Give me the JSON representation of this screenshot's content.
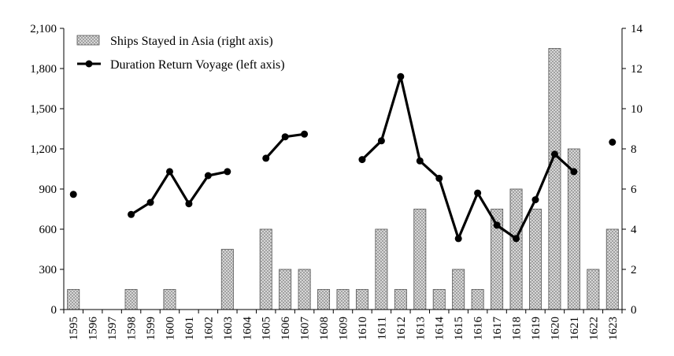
{
  "chart_data": {
    "type": "bar",
    "title": "",
    "xlabel": "",
    "categories": [
      "1595",
      "1596",
      "1597",
      "1598",
      "1599",
      "1600",
      "1601",
      "1602",
      "1603",
      "1604",
      "1605",
      "1606",
      "1607",
      "1608",
      "1609",
      "1610",
      "1611",
      "1612",
      "1613",
      "1614",
      "1615",
      "1616",
      "1617",
      "1618",
      "1619",
      "1620",
      "1621",
      "1622",
      "1623"
    ],
    "left_axis": {
      "ylim": [
        0,
        2100
      ],
      "ticks": [
        "0",
        "300",
        "600",
        "900",
        "1,200",
        "1,500",
        "1,800",
        "2,100"
      ],
      "tick_values": [
        0,
        300,
        600,
        900,
        1200,
        1500,
        1800,
        2100
      ]
    },
    "right_axis": {
      "ylim": [
        0,
        14
      ],
      "ticks": [
        "0",
        "2",
        "4",
        "6",
        "8",
        "10",
        "12",
        "14"
      ],
      "tick_values": [
        0,
        2,
        4,
        6,
        8,
        10,
        12,
        14
      ]
    },
    "series": [
      {
        "name": "Ships Stayed in Asia (right axis)",
        "type": "bar",
        "axis": "right",
        "color": "#c8c8c8",
        "values": [
          1,
          0,
          0,
          1,
          0,
          1,
          0,
          0,
          3,
          0,
          4,
          2,
          2,
          1,
          1,
          1,
          4,
          1,
          5,
          1,
          2,
          1,
          5,
          6,
          5,
          13,
          8,
          2,
          4
        ]
      },
      {
        "name": "Duration Return Voyage (left axis)",
        "type": "line",
        "axis": "left",
        "color": "#000000",
        "values": [
          860,
          null,
          null,
          710,
          800,
          1030,
          790,
          1000,
          1030,
          null,
          1130,
          1290,
          1310,
          null,
          null,
          1120,
          1260,
          1740,
          1110,
          980,
          530,
          870,
          630,
          530,
          820,
          1160,
          1030,
          null,
          1250
        ]
      }
    ],
    "legend": {
      "placement": "top-left"
    },
    "grid": false
  }
}
